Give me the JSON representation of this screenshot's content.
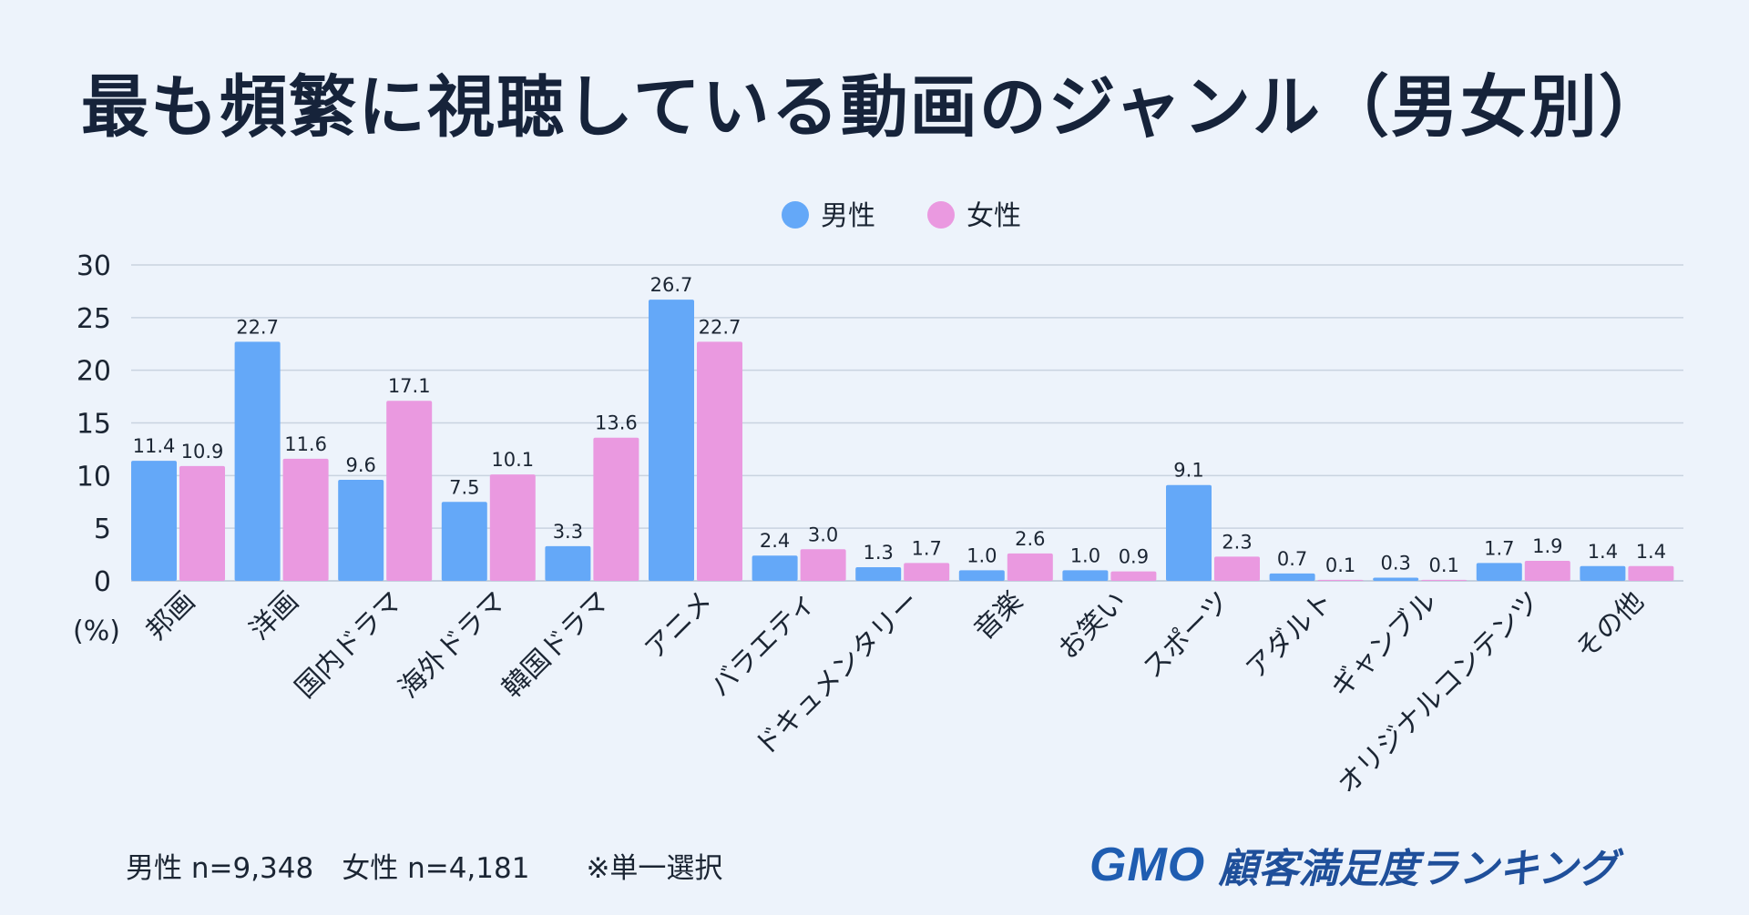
{
  "chart_data": {
    "type": "bar",
    "title": "最も頻繁に視聴している動画のジャンル（男女別）",
    "ylabel": "(%)",
    "ylim": [
      0,
      30
    ],
    "yticks": [
      0,
      5,
      10,
      15,
      20,
      25,
      30
    ],
    "grid": true,
    "legend": "top-center",
    "categories": [
      "邦画",
      "洋画",
      "国内ドラマ",
      "海外ドラマ",
      "韓国ドラマ",
      "アニメ",
      "バラエティ",
      "ドキュメンタリー",
      "音楽",
      "お笑い",
      "スポーツ",
      "アダルト",
      "ギャンブル",
      "オリジナルコンテンツ",
      "その他"
    ],
    "series": [
      {
        "name": "男性",
        "color": "#64a8f8",
        "values": [
          11.4,
          22.7,
          9.6,
          7.5,
          3.3,
          26.7,
          2.4,
          1.3,
          1.0,
          1.0,
          9.1,
          0.7,
          0.3,
          1.7,
          1.4
        ]
      },
      {
        "name": "女性",
        "color": "#ea99e0",
        "values": [
          10.9,
          11.6,
          17.1,
          10.1,
          13.6,
          22.7,
          3.0,
          1.7,
          2.6,
          0.9,
          2.3,
          0.1,
          0.1,
          1.9,
          1.4
        ]
      }
    ]
  },
  "footer": {
    "note": "男性 n=9,348　女性 n=4,181　　※単一選択"
  },
  "logo": {
    "brand": "GMO",
    "text": "顧客満足度ランキング"
  }
}
